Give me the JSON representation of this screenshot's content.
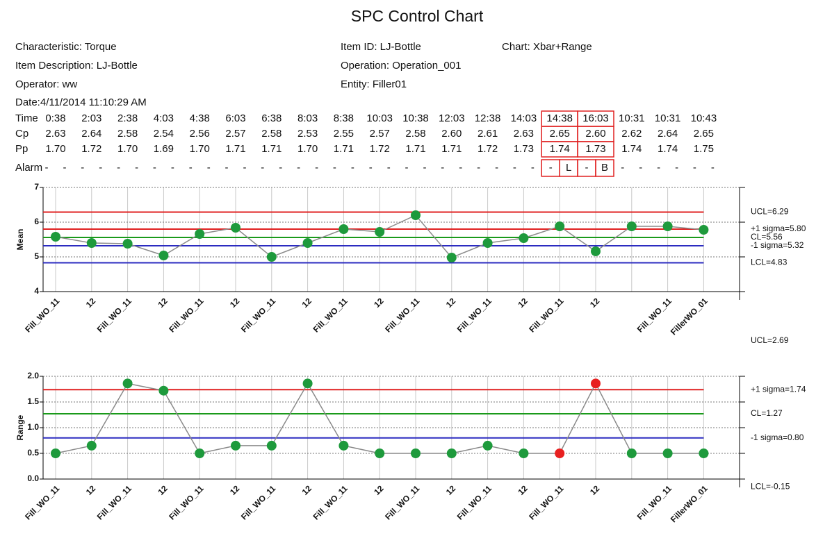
{
  "title": "SPC Control Chart",
  "info": [
    "Characteristic: Torque",
    "Item Description: LJ-Bottle",
    "Operator: ww",
    "Date:4/11/2014 11:10:29 AM",
    "Item ID: LJ-Bottle",
    "Operation: Operation_001",
    "Entity: Filler01",
    "Chart: Xbar+Range"
  ],
  "table": {
    "row_labels": [
      "Time",
      "Cp",
      "Pp",
      "Alarm"
    ],
    "time": [
      "0:38",
      "2:03",
      "2:38",
      "4:03",
      "4:38",
      "6:03",
      "6:38",
      "8:03",
      "8:38",
      "10:03",
      "10:38",
      "12:03",
      "12:38",
      "14:03",
      "14:38",
      "16:03",
      "10:31",
      "10:31",
      "10:43"
    ],
    "cp": [
      "2.63",
      "2.64",
      "2.58",
      "2.54",
      "2.56",
      "2.57",
      "2.58",
      "2.53",
      "2.55",
      "2.57",
      "2.58",
      "2.60",
      "2.61",
      "2.63",
      "2.65",
      "2.60",
      "2.62",
      "2.64",
      "2.65"
    ],
    "pp": [
      "1.70",
      "1.72",
      "1.70",
      "1.69",
      "1.70",
      "1.71",
      "1.71",
      "1.70",
      "1.71",
      "1.72",
      "1.71",
      "1.71",
      "1.72",
      "1.73",
      "1.74",
      "1.73",
      "1.74",
      "1.74",
      "1.75"
    ],
    "alarm": [
      [
        "-",
        "-"
      ],
      [
        "-",
        "-"
      ],
      [
        "-",
        "-"
      ],
      [
        "-",
        "-"
      ],
      [
        "-",
        "-"
      ],
      [
        "-",
        "-"
      ],
      [
        "-",
        "-"
      ],
      [
        "-",
        "-"
      ],
      [
        "-",
        "-"
      ],
      [
        "-",
        "-"
      ],
      [
        "-",
        "-"
      ],
      [
        "-",
        "-"
      ],
      [
        "-",
        "-"
      ],
      [
        "-",
        "-"
      ],
      [
        "-",
        "L"
      ],
      [
        "-",
        "B"
      ],
      [
        "-",
        "-"
      ],
      [
        "-",
        "-"
      ],
      [
        "-",
        "-"
      ]
    ],
    "highlight_color": "#e02020"
  },
  "chart_data": [
    {
      "type": "line",
      "y_label": "Mean",
      "categories": [
        "Fill_WO_11",
        "12",
        "Fill_WO_11",
        "12",
        "Fill_WO_11",
        "12",
        "Fill_WO_11",
        "12",
        "Fill_WO_11",
        "12",
        "Fill_WO_11",
        "12",
        "Fill_WO_11",
        "12",
        "Fill_WO_11",
        "12",
        null,
        "Fill_WO_11",
        "FillerWO_01"
      ],
      "values": [
        5.58,
        5.4,
        5.38,
        5.04,
        5.66,
        5.84,
        5.0,
        5.4,
        5.8,
        5.72,
        6.2,
        4.98,
        5.4,
        5.54,
        5.88,
        5.16,
        5.88,
        5.88,
        5.78
      ],
      "line_color": "#8a8a8a",
      "marker_color": "#1e9a3c",
      "ylim": [
        4,
        7
      ],
      "yticks": [
        4,
        5,
        6,
        7
      ],
      "grid": true,
      "limits": [
        {
          "label": "UCL=6.29",
          "value": 6.29,
          "color": "#e02020"
        },
        {
          "label": "+1 sigma=5.80",
          "value": 5.8,
          "color": "#e02020"
        },
        {
          "label": "CL=5.56",
          "value": 5.56,
          "color": "#1a9a1a"
        },
        {
          "label": "-1 sigma=5.32",
          "value": 5.32,
          "color": "#2b2bc0"
        },
        {
          "label": "LCL=4.83",
          "value": 4.83,
          "color": "#2b2bc0"
        }
      ]
    },
    {
      "type": "line",
      "y_label": "Range",
      "categories": [
        "Fill_WO_11",
        "12",
        "Fill_WO_11",
        "12",
        "Fill_WO_11",
        "12",
        "Fill_WO_11",
        "12",
        "Fill_WO_11",
        "12",
        "Fill_WO_11",
        "12",
        "Fill_WO_11",
        "12",
        "Fill_WO_11",
        "12",
        null,
        "Fill_WO_11",
        "FillerWO_01"
      ],
      "values": [
        0.5,
        0.65,
        1.86,
        1.72,
        0.5,
        0.65,
        0.65,
        1.86,
        0.65,
        0.5,
        0.5,
        0.5,
        0.65,
        0.5,
        0.5,
        1.86,
        0.5,
        0.5,
        0.5
      ],
      "line_color": "#8a8a8a",
      "point_colors": [
        "#1e9a3c",
        "#1e9a3c",
        "#1e9a3c",
        "#1e9a3c",
        "#1e9a3c",
        "#1e9a3c",
        "#1e9a3c",
        "#1e9a3c",
        "#1e9a3c",
        "#1e9a3c",
        "#1e9a3c",
        "#1e9a3c",
        "#1e9a3c",
        "#1e9a3c",
        "#e82020",
        "#e82020",
        "#1e9a3c",
        "#1e9a3c",
        "#1e9a3c"
      ],
      "ylim": [
        0,
        2
      ],
      "yticks": [
        {
          "value": 0,
          "label": "0.0"
        },
        0.5,
        {
          "value": 1,
          "label": "1.0"
        },
        1.5,
        {
          "value": 2,
          "label": "2.0"
        }
      ],
      "grid": true,
      "limits": [
        {
          "label": "UCL=2.69",
          "value": 2.69,
          "color": "#e02020"
        },
        {
          "label": "+1 sigma=1.74",
          "value": 1.74,
          "color": "#e02020"
        },
        {
          "label": "CL=1.27",
          "value": 1.27,
          "color": "#1a9a1a"
        },
        {
          "label": "-1 sigma=0.80",
          "value": 0.8,
          "color": "#2b2bc0"
        },
        {
          "label": "LCL=-0.15",
          "value": -0.15,
          "color": "#2b2bc0"
        }
      ]
    }
  ]
}
